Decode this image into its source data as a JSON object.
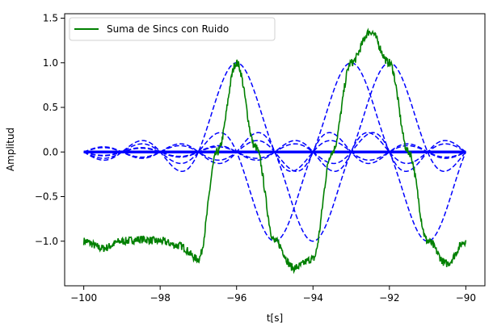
{
  "chart_data": {
    "type": "line",
    "title": "",
    "xlabel": "t[s]",
    "ylabel": "Amplitud",
    "xlim": [
      -100.5,
      -89.5
    ],
    "ylim": [
      -1.5,
      1.55
    ],
    "x_ticks": [
      -100,
      -98,
      -96,
      -94,
      -92,
      -90
    ],
    "x_tick_labels": [
      "−100",
      "−98",
      "−96",
      "−94",
      "−92",
      "−90"
    ],
    "y_ticks": [
      -1.0,
      -0.5,
      0.0,
      0.5,
      1.0,
      1.5
    ],
    "y_tick_labels": [
      "−1.0",
      "−0.5",
      "0.0",
      "0.5",
      "1.0",
      "1.5"
    ],
    "grid": false,
    "legend_position": "top-left",
    "legend": [
      "Suma de Sincs con Ruido"
    ],
    "series": [
      {
        "name": "Suma de Sincs con Ruido",
        "color": "#008000",
        "style": "solid",
        "x": [
          -100,
          -99.5,
          -99,
          -98.5,
          -98,
          -97.5,
          -97,
          -96.5,
          -96,
          -95.5,
          -95,
          -94.5,
          -94,
          -93.5,
          -93,
          -92.5,
          -92,
          -91.5,
          -91,
          -90.5,
          -90
        ],
        "y": [
          -1.0,
          -1.08,
          -1.0,
          -0.98,
          -1.0,
          -1.05,
          -1.2,
          0.0,
          1.0,
          0.05,
          -1.0,
          -1.3,
          -1.2,
          0.0,
          1.0,
          1.35,
          1.0,
          0.0,
          -1.0,
          -1.25,
          -1.0
        ]
      },
      {
        "name": "",
        "color": "#0000ff",
        "style": "dashed",
        "description_values": "sinc components",
        "centers": [
          -96,
          -95,
          -94,
          -93,
          -92,
          -91
        ],
        "amplitudes": [
          1,
          -1,
          -1,
          1,
          1,
          -1
        ]
      },
      {
        "name": "",
        "color": "#0000ff",
        "style": "solid",
        "x": [
          -100,
          -90
        ],
        "y": [
          0.0,
          0.0
        ]
      }
    ]
  }
}
